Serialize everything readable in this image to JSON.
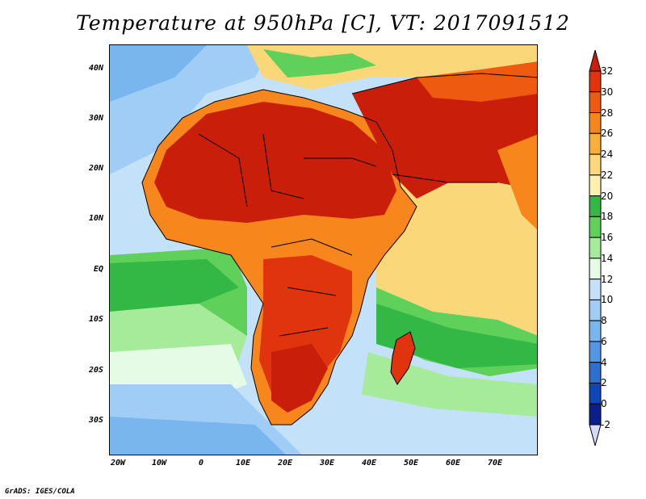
{
  "title": "Temperature at 950hPa [C], VT: 2017091512",
  "credit": "GrADS: IGES/COLA",
  "axes": {
    "y_ticks": [
      "40N",
      "30N",
      "20N",
      "10N",
      "EQ",
      "10S",
      "20S",
      "30S"
    ],
    "x_ticks": [
      "20W",
      "10W",
      "0",
      "10E",
      "20E",
      "30E",
      "40E",
      "50E",
      "60E",
      "70E"
    ]
  },
  "colorbar": {
    "levels": [
      "32",
      "30",
      "28",
      "26",
      "24",
      "22",
      "20",
      "18",
      "16",
      "14",
      "12",
      "10",
      "8",
      "6",
      "4",
      "2",
      "0",
      "-2"
    ],
    "colors": [
      "#c81e0a",
      "#e0340e",
      "#ee5a10",
      "#f7861c",
      "#f9ad3c",
      "#fad87a",
      "#fff0b0",
      "#33b845",
      "#5fd05a",
      "#a6eb9a",
      "#e6fbe6",
      "#c3e2fa",
      "#9fcdf5",
      "#7ab6ee",
      "#5596e3",
      "#2e6fd0",
      "#1047b8",
      "#0a1f8a",
      "#d8d8f8"
    ]
  },
  "map": {
    "region": "Africa, Arabia and Indian Ocean",
    "lat_range": [
      "35S",
      "45N"
    ],
    "lon_range": [
      "22W",
      "80E"
    ]
  }
}
